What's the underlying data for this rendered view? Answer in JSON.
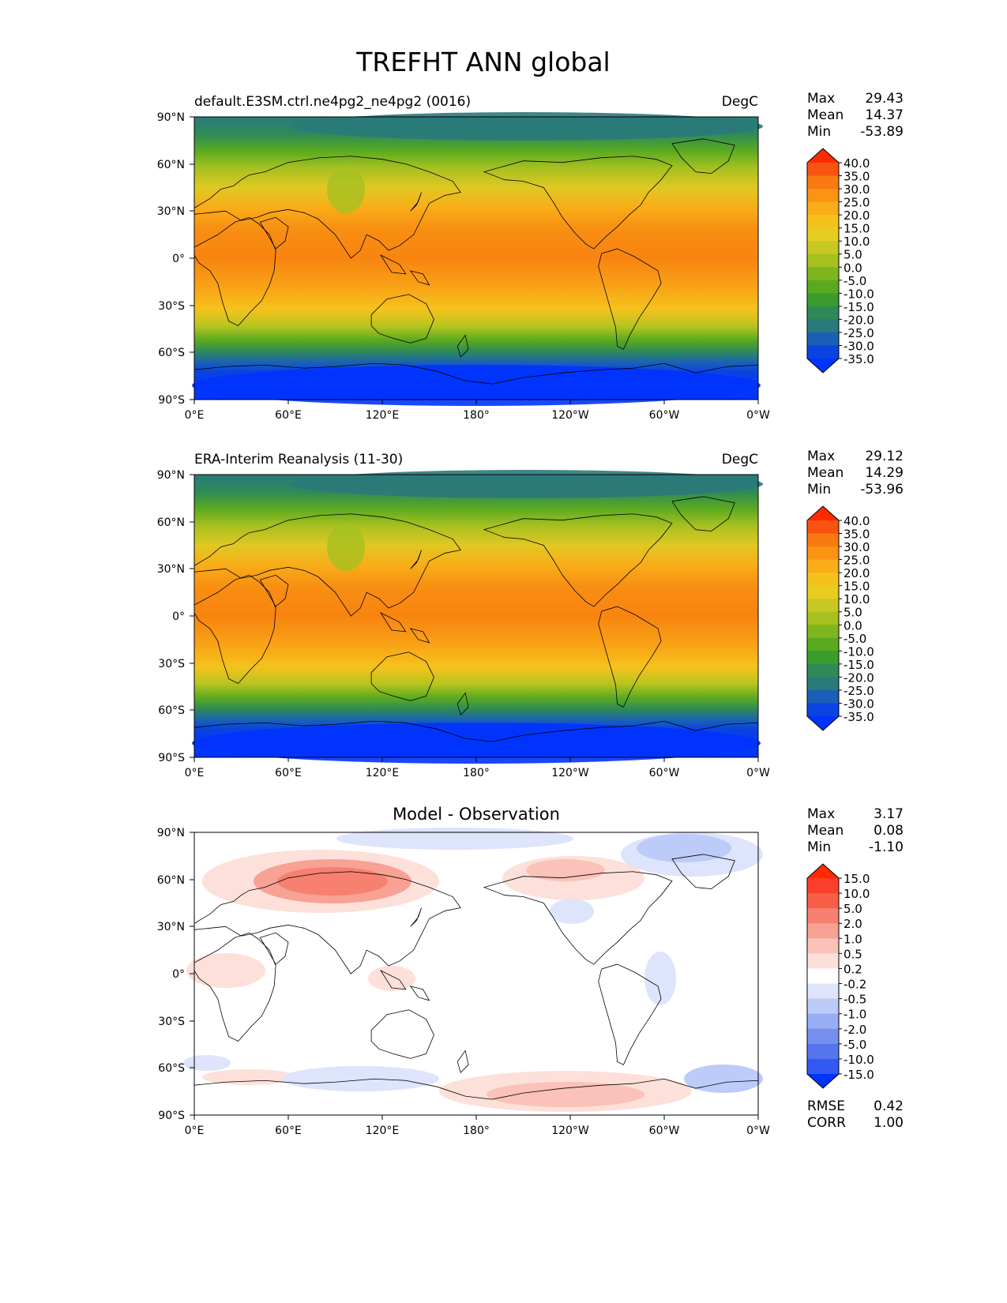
{
  "title": "TREFHT ANN global",
  "lat_ticks": [
    "90°N",
    "60°N",
    "30°N",
    "0°",
    "30°S",
    "60°S",
    "90°S"
  ],
  "lon_ticks": [
    "0°E",
    "60°E",
    "120°E",
    "180°",
    "120°W",
    "60°W",
    "0°W"
  ],
  "panels": [
    {
      "id": "test",
      "left_title": "default.E3SM.ctrl.ne4pg2_ne4pg2 (0016)",
      "center_title": "",
      "units": "DegC",
      "stats": [
        {
          "label": "Max",
          "value": "29.43"
        },
        {
          "label": "Mean",
          "value": "14.37"
        },
        {
          "label": "Min",
          "value": "-53.89"
        }
      ],
      "colorbar": {
        "levels": [
          "40.0",
          "35.0",
          "30.0",
          "25.0",
          "20.0",
          "15.0",
          "10.0",
          "5.0",
          "0.0",
          "-5.0",
          "-10.0",
          "-15.0",
          "-20.0",
          "-25.0",
          "-30.0",
          "-35.0"
        ],
        "colors": [
          "#ff2a00",
          "#f85410",
          "#f87a10",
          "#fb9412",
          "#f9ad18",
          "#f5c21c",
          "#e8cc22",
          "#c8c822",
          "#a6c020",
          "#7fb61e",
          "#5aaa20",
          "#3a9c2c",
          "#2e8a58",
          "#2a7a7a",
          "#1a60b8",
          "#0a44e0",
          "#0033ff"
        ]
      },
      "extra_stats": []
    },
    {
      "id": "reference",
      "left_title": "ERA-Interim Reanalysis (11-30)",
      "center_title": "",
      "units": "DegC",
      "stats": [
        {
          "label": "Max",
          "value": "29.12"
        },
        {
          "label": "Mean",
          "value": "14.29"
        },
        {
          "label": "Min",
          "value": "-53.96"
        }
      ],
      "colorbar": {
        "levels": [
          "40.0",
          "35.0",
          "30.0",
          "25.0",
          "20.0",
          "15.0",
          "10.0",
          "5.0",
          "0.0",
          "-5.0",
          "-10.0",
          "-15.0",
          "-20.0",
          "-25.0",
          "-30.0",
          "-35.0"
        ],
        "colors": [
          "#ff2a00",
          "#f85410",
          "#f87a10",
          "#fb9412",
          "#f9ad18",
          "#f5c21c",
          "#e8cc22",
          "#c8c822",
          "#a6c020",
          "#7fb61e",
          "#5aaa20",
          "#3a9c2c",
          "#2e8a58",
          "#2a7a7a",
          "#1a60b8",
          "#0a44e0",
          "#0033ff"
        ]
      },
      "extra_stats": []
    },
    {
      "id": "difference",
      "left_title": "",
      "center_title": "Model - Observation",
      "units": "",
      "stats": [
        {
          "label": "Max",
          "value": "3.17"
        },
        {
          "label": "Mean",
          "value": "0.08"
        },
        {
          "label": "Min",
          "value": "-1.10"
        }
      ],
      "colorbar": {
        "levels": [
          "15.0",
          "10.0",
          "5.0",
          "2.0",
          "1.0",
          "0.5",
          "0.2",
          "-0.2",
          "-0.5",
          "-1.0",
          "-2.0",
          "-5.0",
          "-10.0",
          "-15.0"
        ],
        "colors": [
          "#ff2a00",
          "#fb3f2a",
          "#f75e48",
          "#f78070",
          "#f7a294",
          "#fac2b8",
          "#fde0da",
          "#ffffff",
          "#dde4fb",
          "#bccbf8",
          "#98aef4",
          "#7690f0",
          "#5574ee",
          "#3458f2",
          "#0033ff"
        ]
      },
      "extra_stats": [
        {
          "label": "RMSE",
          "value": "0.42"
        },
        {
          "label": "CORR",
          "value": "1.00"
        }
      ]
    }
  ],
  "chart_data": [
    {
      "type": "heatmap",
      "title": "default.E3SM.ctrl.ne4pg2_ne4pg2 (0016)",
      "units": "DegC",
      "lat_range": [
        -90,
        90
      ],
      "lon_range": [
        0,
        360
      ],
      "zonal_mean_temperature_by_lat": {
        "lat": [
          -90,
          -75,
          -60,
          -45,
          -30,
          -15,
          0,
          15,
          30,
          45,
          60,
          75,
          90
        ],
        "value": [
          -45,
          -25,
          0,
          8,
          17,
          24,
          27,
          26,
          20,
          12,
          0,
          -12,
          -20
        ]
      },
      "stats": {
        "max": 29.43,
        "mean": 14.37,
        "min": -53.89
      }
    },
    {
      "type": "heatmap",
      "title": "ERA-Interim Reanalysis (11-30)",
      "units": "DegC",
      "lat_range": [
        -90,
        90
      ],
      "lon_range": [
        0,
        360
      ],
      "zonal_mean_temperature_by_lat": {
        "lat": [
          -90,
          -75,
          -60,
          -45,
          -30,
          -15,
          0,
          15,
          30,
          45,
          60,
          75,
          90
        ],
        "value": [
          -45,
          -25,
          0,
          8,
          17,
          24,
          27,
          26,
          20,
          12,
          0,
          -12,
          -20
        ]
      },
      "stats": {
        "max": 29.12,
        "mean": 14.29,
        "min": -53.96
      }
    },
    {
      "type": "heatmap",
      "title": "Model - Observation",
      "lat_range": [
        -90,
        90
      ],
      "lon_range": [
        0,
        360
      ],
      "stats": {
        "max": 3.17,
        "mean": 0.08,
        "min": -1.1,
        "rmse": 0.42,
        "corr": 1.0
      }
    }
  ]
}
